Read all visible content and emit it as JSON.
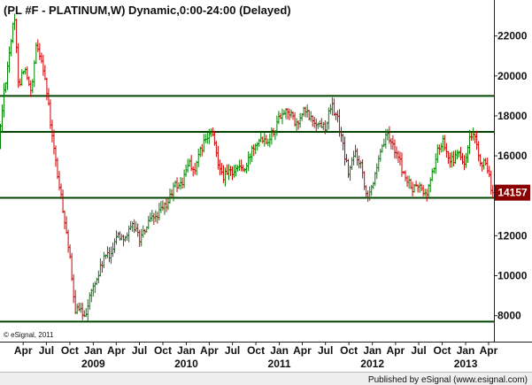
{
  "chart_data": {
    "type": "ohlc",
    "title": "(PL #F - PLATINUM,W) Dynamic,0:00-24:00 (Delayed)",
    "copyright": "© eSignal, 2011",
    "footer": "Published by eSignal (www.esignal.com)",
    "ylim": [
      6700,
      23800
    ],
    "y_ticks": [
      {
        "value": 8000,
        "label": "8000"
      },
      {
        "value": 10000,
        "label": "10000"
      },
      {
        "value": 12000,
        "label": "12000"
      },
      {
        "value": 14000,
        "label": "14000"
      },
      {
        "value": 16000,
        "label": "16000"
      },
      {
        "value": 18000,
        "label": "18000"
      },
      {
        "value": 20000,
        "label": "20000"
      },
      {
        "value": 22000,
        "label": "22000"
      }
    ],
    "x_range": [
      "2008-01-01",
      "2013-04-22"
    ],
    "x_month_ticks": [
      {
        "date": "2008-04-01",
        "label": "Apr"
      },
      {
        "date": "2008-07-01",
        "label": "Jul"
      },
      {
        "date": "2008-10-01",
        "label": "Oct"
      },
      {
        "date": "2009-01-01",
        "label": "Jan"
      },
      {
        "date": "2009-04-01",
        "label": "Apr"
      },
      {
        "date": "2009-07-01",
        "label": "Jul"
      },
      {
        "date": "2009-10-01",
        "label": "Oct"
      },
      {
        "date": "2010-01-01",
        "label": "Jan"
      },
      {
        "date": "2010-04-01",
        "label": "Apr"
      },
      {
        "date": "2010-07-01",
        "label": "Jul"
      },
      {
        "date": "2010-10-01",
        "label": "Oct"
      },
      {
        "date": "2011-01-01",
        "label": "Jan"
      },
      {
        "date": "2011-04-01",
        "label": "Apr"
      },
      {
        "date": "2011-07-01",
        "label": "Jul"
      },
      {
        "date": "2011-10-01",
        "label": "Oct"
      },
      {
        "date": "2012-01-01",
        "label": "Jan"
      },
      {
        "date": "2012-04-01",
        "label": "Apr"
      },
      {
        "date": "2012-07-01",
        "label": "Jul"
      },
      {
        "date": "2012-10-01",
        "label": "Oct"
      },
      {
        "date": "2013-01-01",
        "label": "Jan"
      },
      {
        "date": "2013-04-01",
        "label": "Apr"
      }
    ],
    "x_year_labels": [
      {
        "date": "2009-01-01",
        "label": "2009"
      },
      {
        "date": "2010-01-01",
        "label": "2010"
      },
      {
        "date": "2011-01-01",
        "label": "2011"
      },
      {
        "date": "2012-01-01",
        "label": "2012"
      },
      {
        "date": "2013-01-01",
        "label": "2013"
      }
    ],
    "horizontal_lines": [
      19000,
      17200,
      13900,
      7700
    ],
    "last_price": 14157,
    "last_price_label": "14157",
    "anchors": [
      [
        "2008-01-01",
        16500
      ],
      [
        "2008-01-20",
        19000
      ],
      [
        "2008-02-15",
        21500
      ],
      [
        "2008-03-03",
        22900
      ],
      [
        "2008-03-20",
        19500
      ],
      [
        "2008-04-10",
        20500
      ],
      [
        "2008-05-08",
        19000
      ],
      [
        "2008-05-28",
        21500
      ],
      [
        "2008-06-20",
        20800
      ],
      [
        "2008-07-05",
        19500
      ],
      [
        "2008-07-28",
        17000
      ],
      [
        "2008-08-25",
        14500
      ],
      [
        "2008-09-20",
        12500
      ],
      [
        "2008-10-05",
        11000
      ],
      [
        "2008-10-24",
        8400
      ],
      [
        "2008-11-12",
        8200
      ],
      [
        "2008-12-05",
        8100
      ],
      [
        "2008-12-30",
        9200
      ],
      [
        "2009-01-25",
        10000
      ],
      [
        "2009-02-20",
        11000
      ],
      [
        "2009-03-10",
        10900
      ],
      [
        "2009-04-05",
        12000
      ],
      [
        "2009-05-15",
        12000
      ],
      [
        "2009-06-15",
        12500
      ],
      [
        "2009-07-10",
        11800
      ],
      [
        "2009-08-10",
        12600
      ],
      [
        "2009-09-10",
        13000
      ],
      [
        "2009-10-20",
        13500
      ],
      [
        "2009-11-20",
        14500
      ],
      [
        "2009-12-20",
        14600
      ],
      [
        "2010-01-20",
        15800
      ],
      [
        "2010-02-05",
        15100
      ],
      [
        "2010-03-10",
        16500
      ],
      [
        "2010-04-15",
        17200
      ],
      [
        "2010-05-10",
        15800
      ],
      [
        "2010-06-01",
        15000
      ],
      [
        "2010-07-01",
        15200
      ],
      [
        "2010-08-05",
        15500
      ],
      [
        "2010-08-25",
        15200
      ],
      [
        "2010-09-25",
        16500
      ],
      [
        "2010-10-25",
        17000
      ],
      [
        "2010-11-20",
        16800
      ],
      [
        "2010-12-20",
        17400
      ],
      [
        "2011-01-15",
        18200
      ],
      [
        "2011-02-10",
        18300
      ],
      [
        "2011-03-15",
        17500
      ],
      [
        "2011-04-15",
        18300
      ],
      [
        "2011-05-05",
        17900
      ],
      [
        "2011-06-05",
        17600
      ],
      [
        "2011-07-05",
        17500
      ],
      [
        "2011-07-30",
        18500
      ],
      [
        "2011-08-20",
        18000
      ],
      [
        "2011-09-20",
        16000
      ],
      [
        "2011-10-05",
        15100
      ],
      [
        "2011-10-30",
        16200
      ],
      [
        "2011-11-25",
        15500
      ],
      [
        "2011-12-15",
        14000
      ],
      [
        "2012-01-20",
        15000
      ],
      [
        "2012-02-15",
        16500
      ],
      [
        "2012-03-05",
        17000
      ],
      [
        "2012-04-10",
        16200
      ],
      [
        "2012-05-10",
        15000
      ],
      [
        "2012-06-10",
        14300
      ],
      [
        "2012-07-05",
        14500
      ],
      [
        "2012-08-05",
        14000
      ],
      [
        "2012-08-25",
        15000
      ],
      [
        "2012-09-20",
        16300
      ],
      [
        "2012-10-10",
        16800
      ],
      [
        "2012-11-10",
        15700
      ],
      [
        "2012-12-10",
        16100
      ],
      [
        "2013-01-05",
        15500
      ],
      [
        "2013-01-20",
        16800
      ],
      [
        "2013-02-10",
        16900
      ],
      [
        "2013-02-28",
        15800
      ],
      [
        "2013-03-25",
        15500
      ],
      [
        "2013-04-10",
        14800
      ],
      [
        "2013-04-22",
        14157
      ]
    ],
    "colors": {
      "up": "#008000",
      "down": "#cc0000",
      "line": "#004400",
      "badge": "#8b0000",
      "border": "#222222",
      "footer_bg": "#eeeeee"
    }
  }
}
